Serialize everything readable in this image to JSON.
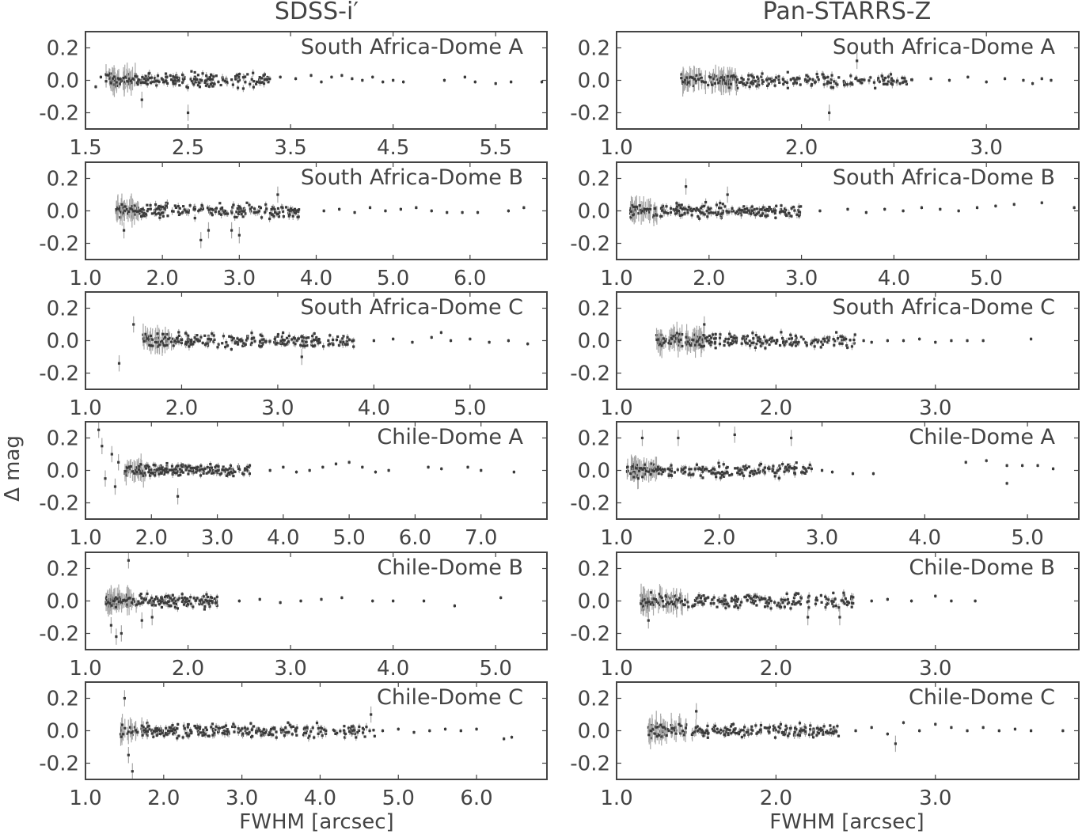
{
  "figure": {
    "column_titles": [
      "SDSS-i′",
      "Pan-STARRS-Z"
    ],
    "ylabel": "Δ mag",
    "xlabel": "FWHM [arcsec]"
  },
  "colors": {
    "frame": "#444444",
    "marker": "#3a3a3a",
    "errorbar": "#a8a8a8"
  },
  "chart_data": [
    {
      "type": "scatter",
      "column": "SDSS-i′",
      "title": "South Africa-Dome A",
      "xlim": [
        1.5,
        6.0
      ],
      "ylim": [
        -0.3,
        0.3
      ],
      "xticks": [
        1.5,
        2.5,
        3.5,
        4.5,
        5.5
      ],
      "yticks": [
        0.2,
        0.0,
        -0.2
      ],
      "dense": [
        1.7,
        3.3
      ],
      "sparse": [
        [
          1.6,
          -0.04
        ],
        [
          1.65,
          0.02
        ],
        [
          3.4,
          0.02
        ],
        [
          3.55,
          0.01
        ],
        [
          3.7,
          0.03
        ],
        [
          3.8,
          -0.01
        ],
        [
          3.9,
          0.02
        ],
        [
          4.0,
          0.03
        ],
        [
          4.1,
          0.01
        ],
        [
          4.2,
          0.0
        ],
        [
          4.3,
          0.02
        ],
        [
          4.4,
          -0.01
        ],
        [
          4.5,
          0.0
        ],
        [
          4.6,
          -0.01
        ],
        [
          5.0,
          0.0
        ],
        [
          5.2,
          0.02
        ],
        [
          5.3,
          -0.01
        ],
        [
          5.5,
          -0.02
        ],
        [
          5.65,
          -0.01
        ],
        [
          5.95,
          -0.01
        ]
      ],
      "outliers": [
        [
          2.5,
          -0.2
        ],
        [
          2.05,
          -0.12
        ]
      ],
      "seed": 11
    },
    {
      "type": "scatter",
      "column": "Pan-STARRS-Z",
      "title": "South Africa-Dome A",
      "xlim": [
        1.0,
        3.5
      ],
      "ylim": [
        -0.3,
        0.3
      ],
      "xticks": [
        1.0,
        2.0,
        3.0
      ],
      "yticks": [
        0.2,
        0.0,
        -0.2
      ],
      "dense": [
        1.35,
        2.6
      ],
      "sparse": [
        [
          2.7,
          0.01
        ],
        [
          2.8,
          0.0
        ],
        [
          2.9,
          0.02
        ],
        [
          3.0,
          -0.01
        ],
        [
          3.1,
          0.01
        ],
        [
          3.2,
          0.0
        ],
        [
          3.25,
          -0.02
        ],
        [
          3.3,
          0.01
        ],
        [
          3.35,
          0.0
        ],
        [
          3.5,
          0.0
        ]
      ],
      "outliers": [
        [
          2.15,
          -0.2
        ],
        [
          2.3,
          0.12
        ]
      ],
      "seed": 12
    },
    {
      "type": "scatter",
      "column": "SDSS-i′",
      "title": "South Africa-Dome B",
      "xlim": [
        1.0,
        7.0
      ],
      "ylim": [
        -0.3,
        0.3
      ],
      "xticks": [
        1.0,
        2.0,
        3.0,
        4.0,
        5.0,
        6.0
      ],
      "yticks": [
        0.2,
        0.0,
        -0.2
      ],
      "dense": [
        1.4,
        3.8
      ],
      "sparse": [
        [
          4.1,
          0.0
        ],
        [
          4.3,
          0.01
        ],
        [
          4.5,
          -0.01
        ],
        [
          4.7,
          0.02
        ],
        [
          4.9,
          0.0
        ],
        [
          5.1,
          0.01
        ],
        [
          5.3,
          0.02
        ],
        [
          5.5,
          0.0
        ],
        [
          5.7,
          -0.01
        ],
        [
          5.9,
          -0.01
        ],
        [
          6.1,
          -0.01
        ],
        [
          6.5,
          0.0
        ],
        [
          6.7,
          0.02
        ]
      ],
      "outliers": [
        [
          2.5,
          -0.18
        ],
        [
          2.6,
          -0.12
        ],
        [
          3.0,
          -0.15
        ],
        [
          2.9,
          -0.12
        ],
        [
          1.5,
          -0.12
        ],
        [
          3.5,
          0.1
        ]
      ],
      "seed": 13
    },
    {
      "type": "scatter",
      "column": "Pan-STARRS-Z",
      "title": "South Africa-Dome B",
      "xlim": [
        1.0,
        6.0
      ],
      "ylim": [
        -0.3,
        0.3
      ],
      "xticks": [
        1.0,
        2.0,
        3.0,
        4.0,
        5.0
      ],
      "yticks": [
        0.2,
        0.0,
        -0.2
      ],
      "dense": [
        1.15,
        3.0
      ],
      "sparse": [
        [
          3.2,
          0.0
        ],
        [
          3.5,
          0.01
        ],
        [
          3.7,
          -0.01
        ],
        [
          3.9,
          0.01
        ],
        [
          4.1,
          0.0
        ],
        [
          4.3,
          0.02
        ],
        [
          4.5,
          0.01
        ],
        [
          4.7,
          0.0
        ],
        [
          4.9,
          0.02
        ],
        [
          5.1,
          0.03
        ],
        [
          5.3,
          0.04
        ],
        [
          5.6,
          0.05
        ],
        [
          5.95,
          0.02
        ]
      ],
      "outliers": [
        [
          1.75,
          0.15
        ],
        [
          2.2,
          0.1
        ]
      ],
      "seed": 14
    },
    {
      "type": "scatter",
      "column": "SDSS-i′",
      "title": "South Africa-Dome C",
      "xlim": [
        1.0,
        5.8
      ],
      "ylim": [
        -0.3,
        0.3
      ],
      "xticks": [
        1.0,
        2.0,
        3.0,
        4.0,
        5.0
      ],
      "yticks": [
        0.2,
        0.0,
        -0.2
      ],
      "dense": [
        1.6,
        3.8
      ],
      "sparse": [
        [
          4.0,
          0.0
        ],
        [
          4.2,
          0.01
        ],
        [
          4.4,
          -0.01
        ],
        [
          4.6,
          0.02
        ],
        [
          4.7,
          0.05
        ],
        [
          4.8,
          0.0
        ],
        [
          5.0,
          0.01
        ],
        [
          5.2,
          -0.01
        ],
        [
          5.4,
          0.0
        ],
        [
          5.6,
          -0.02
        ]
      ],
      "outliers": [
        [
          1.35,
          -0.14
        ],
        [
          1.5,
          0.1
        ],
        [
          3.25,
          -0.1
        ]
      ],
      "seed": 15
    },
    {
      "type": "scatter",
      "column": "Pan-STARRS-Z",
      "title": "South Africa-Dome C",
      "xlim": [
        1.0,
        3.9
      ],
      "ylim": [
        -0.3,
        0.3
      ],
      "xticks": [
        1.0,
        2.0,
        3.0
      ],
      "yticks": [
        0.2,
        0.0,
        -0.2
      ],
      "dense": [
        1.25,
        2.5
      ],
      "sparse": [
        [
          2.55,
          0.0
        ],
        [
          2.6,
          -0.01
        ],
        [
          2.7,
          0.0
        ],
        [
          2.8,
          0.0
        ],
        [
          2.9,
          0.01
        ],
        [
          3.0,
          -0.01
        ],
        [
          3.1,
          0.0
        ],
        [
          3.2,
          0.0
        ],
        [
          3.3,
          0.0
        ],
        [
          3.6,
          0.01
        ]
      ],
      "outliers": [
        [
          1.55,
          0.1
        ]
      ],
      "seed": 16
    },
    {
      "type": "scatter",
      "column": "SDSS-i′",
      "title": "Chile-Dome A",
      "xlim": [
        1.0,
        8.0
      ],
      "ylim": [
        -0.3,
        0.3
      ],
      "xticks": [
        1.0,
        2.0,
        3.0,
        4.0,
        5.0,
        6.0,
        7.0
      ],
      "yticks": [
        0.2,
        0.0,
        -0.2
      ],
      "dense": [
        1.6,
        3.5
      ],
      "sparse": [
        [
          3.8,
          0.0
        ],
        [
          4.0,
          0.02
        ],
        [
          4.2,
          -0.01
        ],
        [
          4.4,
          0.0
        ],
        [
          4.6,
          0.02
        ],
        [
          4.8,
          0.04
        ],
        [
          5.0,
          0.05
        ],
        [
          5.2,
          0.02
        ],
        [
          5.4,
          -0.01
        ],
        [
          5.6,
          0.0
        ],
        [
          6.2,
          0.02
        ],
        [
          6.4,
          0.01
        ],
        [
          6.8,
          0.02
        ],
        [
          7.0,
          0.0
        ],
        [
          7.5,
          -0.01
        ]
      ],
      "outliers": [
        [
          1.2,
          0.25
        ],
        [
          1.25,
          0.15
        ],
        [
          1.3,
          -0.05
        ],
        [
          1.4,
          0.1
        ],
        [
          1.45,
          -0.1
        ],
        [
          1.5,
          0.05
        ],
        [
          2.4,
          -0.16
        ]
      ],
      "seed": 17
    },
    {
      "type": "scatter",
      "column": "Pan-STARRS-Z",
      "title": "Chile-Dome A",
      "xlim": [
        1.0,
        5.5
      ],
      "ylim": [
        -0.3,
        0.3
      ],
      "xticks": [
        1.0,
        2.0,
        3.0,
        4.0,
        5.0
      ],
      "yticks": [
        0.2,
        0.0,
        -0.2
      ],
      "dense": [
        1.1,
        2.9
      ],
      "sparse": [
        [
          3.0,
          0.0
        ],
        [
          3.1,
          -0.01
        ],
        [
          3.3,
          -0.02
        ],
        [
          3.5,
          -0.02
        ],
        [
          4.4,
          0.05
        ],
        [
          4.6,
          0.06
        ],
        [
          4.8,
          0.03
        ],
        [
          4.95,
          0.03
        ],
        [
          5.1,
          0.03
        ],
        [
          5.25,
          0.01
        ],
        [
          4.8,
          -0.08
        ]
      ],
      "outliers": [
        [
          1.25,
          0.2
        ],
        [
          1.6,
          0.2
        ],
        [
          2.15,
          0.22
        ],
        [
          2.7,
          0.2
        ]
      ],
      "seed": 18
    },
    {
      "type": "scatter",
      "column": "SDSS-i′",
      "title": "Chile-Dome B",
      "xlim": [
        1.0,
        5.5
      ],
      "ylim": [
        -0.3,
        0.3
      ],
      "xticks": [
        1.0,
        2.0,
        3.0,
        4.0,
        5.0
      ],
      "yticks": [
        0.2,
        0.0,
        -0.2
      ],
      "dense": [
        1.2,
        2.3
      ],
      "sparse": [
        [
          2.5,
          0.0
        ],
        [
          2.7,
          0.01
        ],
        [
          2.9,
          -0.01
        ],
        [
          3.1,
          0.0
        ],
        [
          3.3,
          0.01
        ],
        [
          3.5,
          0.02
        ],
        [
          3.8,
          0.0
        ],
        [
          4.0,
          0.0
        ],
        [
          4.3,
          0.0
        ],
        [
          4.6,
          -0.03
        ],
        [
          5.05,
          0.02
        ]
      ],
      "outliers": [
        [
          1.25,
          -0.15
        ],
        [
          1.3,
          -0.22
        ],
        [
          1.35,
          -0.2
        ],
        [
          1.42,
          0.25
        ],
        [
          1.55,
          -0.12
        ],
        [
          1.65,
          -0.1
        ]
      ],
      "seed": 19
    },
    {
      "type": "scatter",
      "column": "Pan-STARRS-Z",
      "title": "Chile-Dome B",
      "xlim": [
        1.0,
        3.9
      ],
      "ylim": [
        -0.3,
        0.3
      ],
      "xticks": [
        1.0,
        2.0,
        3.0
      ],
      "yticks": [
        0.2,
        0.0,
        -0.2
      ],
      "dense": [
        1.15,
        2.5
      ],
      "sparse": [
        [
          2.6,
          0.0
        ],
        [
          2.7,
          0.01
        ],
        [
          2.85,
          0.0
        ],
        [
          3.0,
          0.03
        ],
        [
          3.1,
          0.0
        ],
        [
          3.25,
          0.0
        ]
      ],
      "outliers": [
        [
          1.2,
          -0.12
        ],
        [
          2.2,
          -0.1
        ],
        [
          2.4,
          -0.1
        ],
        [
          3.9,
          0.02
        ]
      ],
      "seed": 20
    },
    {
      "type": "scatter",
      "column": "SDSS-i′",
      "title": "Chile-Dome C",
      "xlim": [
        1.0,
        6.9
      ],
      "ylim": [
        -0.3,
        0.3
      ],
      "xticks": [
        1.0,
        2.0,
        3.0,
        4.0,
        5.0,
        6.0
      ],
      "yticks": [
        0.2,
        0.0,
        -0.2
      ],
      "dense": [
        1.45,
        4.7
      ],
      "sparse": [
        [
          4.8,
          0.0
        ],
        [
          5.0,
          0.01
        ],
        [
          5.2,
          -0.01
        ],
        [
          5.4,
          0.0
        ],
        [
          5.6,
          0.01
        ],
        [
          5.8,
          0.0
        ],
        [
          6.0,
          0.01
        ],
        [
          6.35,
          -0.05
        ],
        [
          6.45,
          -0.04
        ]
      ],
      "outliers": [
        [
          1.5,
          0.2
        ],
        [
          1.55,
          -0.15
        ],
        [
          1.6,
          -0.25
        ],
        [
          4.65,
          0.1
        ]
      ],
      "seed": 21
    },
    {
      "type": "scatter",
      "column": "Pan-STARRS-Z",
      "title": "Chile-Dome C",
      "xlim": [
        1.0,
        3.9
      ],
      "ylim": [
        -0.3,
        0.3
      ],
      "xticks": [
        1.0,
        2.0,
        3.0
      ],
      "yticks": [
        0.2,
        0.0,
        -0.2
      ],
      "dense": [
        1.2,
        2.4
      ],
      "sparse": [
        [
          2.5,
          0.0
        ],
        [
          2.6,
          0.02
        ],
        [
          2.7,
          -0.02
        ],
        [
          2.8,
          0.05
        ],
        [
          2.9,
          0.0
        ],
        [
          3.0,
          0.04
        ],
        [
          3.1,
          0.02
        ],
        [
          3.2,
          0.0
        ],
        [
          3.3,
          0.02
        ],
        [
          3.4,
          0.0
        ],
        [
          3.5,
          0.01
        ],
        [
          3.6,
          0.0
        ],
        [
          3.8,
          0.0
        ],
        [
          3.9,
          0.0
        ]
      ],
      "outliers": [
        [
          1.5,
          0.12
        ],
        [
          2.75,
          -0.08
        ]
      ],
      "seed": 22
    }
  ]
}
